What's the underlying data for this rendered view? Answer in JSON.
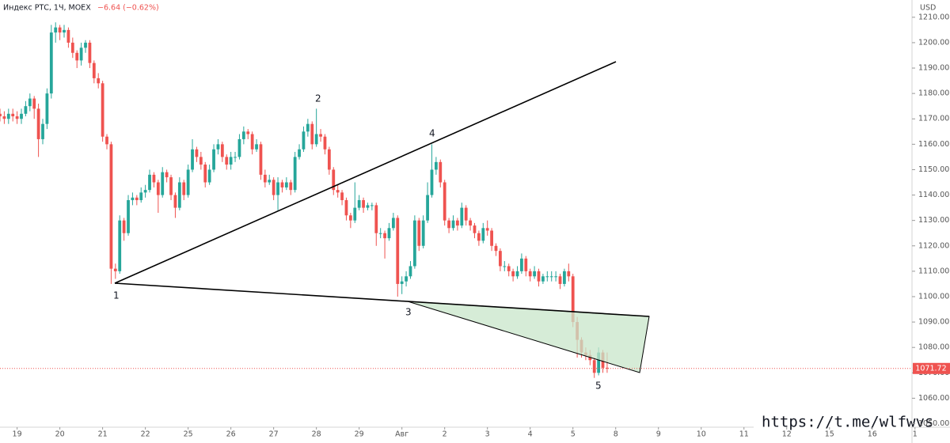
{
  "chart_data": {
    "type": "candlestick",
    "title": "Индекс РТС, 1Ч, MOEX",
    "change": "−6.64 (−0.62%)",
    "currency": "USD",
    "watermark": "https://t.me/wlfwvs",
    "annotations": [
      "1",
      "2",
      "3",
      "4",
      "5"
    ],
    "up_color": "#26a69a",
    "down_color": "#ef5350",
    "grid": false,
    "ylim": [
      1048.6,
      1216.8
    ],
    "yticks": [
      {
        "value": 1050,
        "label": "1050.00"
      },
      {
        "value": 1060,
        "label": "1060.00"
      },
      {
        "value": 1070,
        "label": "1070.00"
      },
      {
        "value": 1080,
        "label": "1080.00"
      },
      {
        "value": 1090,
        "label": "1090.00"
      },
      {
        "value": 1100,
        "label": "1100.00"
      },
      {
        "value": 1110,
        "label": "1110.00"
      },
      {
        "value": 1120,
        "label": "1120.00"
      },
      {
        "value": 1130,
        "label": "1130.00"
      },
      {
        "value": 1140,
        "label": "1140.00"
      },
      {
        "value": 1150,
        "label": "1150.00"
      },
      {
        "value": 1160,
        "label": "1160.00"
      },
      {
        "value": 1170,
        "label": "1170.00"
      },
      {
        "value": 1180,
        "label": "1180.00"
      },
      {
        "value": 1190,
        "label": "1190.00"
      },
      {
        "value": 1200,
        "label": "1200.00"
      },
      {
        "value": 1210,
        "label": "1210.00"
      }
    ],
    "xlim": [
      0,
      213.3
    ],
    "xticks": [
      {
        "value": 4,
        "label": "19"
      },
      {
        "value": 14,
        "label": "20"
      },
      {
        "value": 24,
        "label": "21"
      },
      {
        "value": 34,
        "label": "22"
      },
      {
        "value": 44,
        "label": "25"
      },
      {
        "value": 54,
        "label": "26"
      },
      {
        "value": 64,
        "label": "27"
      },
      {
        "value": 74,
        "label": "28"
      },
      {
        "value": 84,
        "label": "29"
      },
      {
        "value": 94,
        "label": "Авг"
      },
      {
        "value": 104,
        "label": "2"
      },
      {
        "value": 114,
        "label": "3"
      },
      {
        "value": 124,
        "label": "4"
      },
      {
        "value": 134,
        "label": "5"
      },
      {
        "value": 144,
        "label": "8"
      },
      {
        "value": 154,
        "label": "9"
      },
      {
        "value": 164,
        "label": "10"
      },
      {
        "value": 174,
        "label": "11"
      },
      {
        "value": 184,
        "label": "12"
      },
      {
        "value": 194,
        "label": "15"
      },
      {
        "value": 204,
        "label": "16"
      },
      {
        "value": 214,
        "label": "1"
      }
    ],
    "ohlc": [
      [
        1172,
        1174,
        1169,
        1171
      ],
      [
        1171,
        1173,
        1168,
        1170
      ],
      [
        1170,
        1174,
        1168,
        1172
      ],
      [
        1172,
        1174,
        1169,
        1171
      ],
      [
        1171,
        1173,
        1168,
        1170
      ],
      [
        1170,
        1174,
        1168,
        1172
      ],
      [
        1172,
        1177,
        1171,
        1175
      ],
      [
        1175,
        1180,
        1173,
        1178
      ],
      [
        1178,
        1179,
        1170,
        1174
      ],
      [
        1174,
        1176,
        1155,
        1162
      ],
      [
        1162,
        1170,
        1160,
        1168
      ],
      [
        1168,
        1182,
        1166,
        1180
      ],
      [
        1180,
        1207,
        1178,
        1204
      ],
      [
        1204,
        1208,
        1200,
        1206
      ],
      [
        1206,
        1207,
        1201,
        1204
      ],
      [
        1204,
        1207,
        1202,
        1205
      ],
      [
        1205,
        1206,
        1198,
        1200
      ],
      [
        1200,
        1202,
        1194,
        1196
      ],
      [
        1196,
        1197,
        1190,
        1193
      ],
      [
        1193,
        1200,
        1191,
        1198
      ],
      [
        1198,
        1201,
        1196,
        1200
      ],
      [
        1200,
        1201,
        1190,
        1192
      ],
      [
        1192,
        1193,
        1184,
        1186
      ],
      [
        1186,
        1188,
        1182,
        1184
      ],
      [
        1184,
        1185,
        1161,
        1163
      ],
      [
        1163,
        1164,
        1158,
        1160
      ],
      [
        1160,
        1161,
        1105,
        1111
      ],
      [
        1111,
        1113,
        1107,
        1110
      ],
      [
        1110,
        1132,
        1109,
        1130
      ],
      [
        1130,
        1131,
        1122,
        1125
      ],
      [
        1125,
        1140,
        1124,
        1138
      ],
      [
        1138,
        1141,
        1136,
        1139
      ],
      [
        1139,
        1140,
        1136,
        1138
      ],
      [
        1138,
        1143,
        1137,
        1141
      ],
      [
        1141,
        1144,
        1139,
        1142
      ],
      [
        1142,
        1150,
        1141,
        1148
      ],
      [
        1148,
        1149,
        1143,
        1145
      ],
      [
        1145,
        1146,
        1133,
        1140
      ],
      [
        1140,
        1151,
        1139,
        1149
      ],
      [
        1149,
        1150,
        1145,
        1147
      ],
      [
        1147,
        1148,
        1138,
        1140
      ],
      [
        1140,
        1141,
        1131,
        1135
      ],
      [
        1135,
        1147,
        1134,
        1145
      ],
      [
        1145,
        1146,
        1138,
        1140
      ],
      [
        1140,
        1152,
        1139,
        1150
      ],
      [
        1150,
        1162,
        1149,
        1158
      ],
      [
        1158,
        1159,
        1153,
        1155
      ],
      [
        1155,
        1157,
        1150,
        1152
      ],
      [
        1152,
        1153,
        1143,
        1145
      ],
      [
        1145,
        1152,
        1144,
        1150
      ],
      [
        1150,
        1160,
        1149,
        1158
      ],
      [
        1158,
        1162,
        1156,
        1160
      ],
      [
        1160,
        1161,
        1153,
        1155
      ],
      [
        1155,
        1156,
        1150,
        1152
      ],
      [
        1152,
        1157,
        1150,
        1155
      ],
      [
        1155,
        1157,
        1153,
        1155
      ],
      [
        1155,
        1164,
        1154,
        1162
      ],
      [
        1162,
        1167,
        1160,
        1165
      ],
      [
        1165,
        1166,
        1162,
        1164
      ],
      [
        1164,
        1165,
        1156,
        1158
      ],
      [
        1158,
        1162,
        1157,
        1160
      ],
      [
        1160,
        1161,
        1146,
        1148
      ],
      [
        1148,
        1150,
        1143,
        1145
      ],
      [
        1145,
        1148,
        1144,
        1146
      ],
      [
        1146,
        1147,
        1138,
        1140
      ],
      [
        1140,
        1147,
        1134,
        1145
      ],
      [
        1145,
        1146,
        1141,
        1143
      ],
      [
        1143,
        1147,
        1142,
        1145
      ],
      [
        1145,
        1146,
        1140,
        1142
      ],
      [
        1142,
        1157,
        1141,
        1155
      ],
      [
        1155,
        1160,
        1154,
        1158
      ],
      [
        1158,
        1167,
        1157,
        1165
      ],
      [
        1165,
        1170,
        1163,
        1168
      ],
      [
        1168,
        1169,
        1158,
        1160
      ],
      [
        1160,
        1174,
        1159,
        1164
      ],
      [
        1164,
        1166,
        1161,
        1163
      ],
      [
        1163,
        1164,
        1156,
        1158
      ],
      [
        1158,
        1159,
        1148,
        1150
      ],
      [
        1150,
        1151,
        1140,
        1142
      ],
      [
        1142,
        1144,
        1139,
        1141
      ],
      [
        1141,
        1142,
        1136,
        1138
      ],
      [
        1138,
        1139,
        1130,
        1132
      ],
      [
        1132,
        1133,
        1127,
        1130
      ],
      [
        1130,
        1145,
        1129,
        1135
      ],
      [
        1135,
        1140,
        1134,
        1138
      ],
      [
        1138,
        1139,
        1133,
        1135
      ],
      [
        1135,
        1137,
        1134,
        1136
      ],
      [
        1136,
        1137,
        1134,
        1136
      ],
      [
        1136,
        1137,
        1120,
        1125
      ],
      [
        1125,
        1127,
        1123,
        1125
      ],
      [
        1125,
        1126,
        1115,
        1123
      ],
      [
        1123,
        1129,
        1122,
        1127
      ],
      [
        1127,
        1133,
        1126,
        1131
      ],
      [
        1131,
        1132,
        1100,
        1105
      ],
      [
        1105,
        1108,
        1101,
        1106
      ],
      [
        1106,
        1110,
        1104,
        1108
      ],
      [
        1108,
        1114,
        1107,
        1112
      ],
      [
        1112,
        1132,
        1111,
        1130
      ],
      [
        1130,
        1131,
        1118,
        1120
      ],
      [
        1120,
        1132,
        1119,
        1130
      ],
      [
        1130,
        1145,
        1129,
        1140
      ],
      [
        1140,
        1160,
        1139,
        1150
      ],
      [
        1150,
        1155,
        1148,
        1153
      ],
      [
        1153,
        1154,
        1143,
        1145
      ],
      [
        1145,
        1146,
        1128,
        1130
      ],
      [
        1130,
        1131,
        1125,
        1127
      ],
      [
        1127,
        1132,
        1126,
        1130
      ],
      [
        1130,
        1131,
        1126,
        1128
      ],
      [
        1128,
        1137,
        1127,
        1135
      ],
      [
        1135,
        1136,
        1128,
        1130
      ],
      [
        1130,
        1131,
        1126,
        1128
      ],
      [
        1128,
        1129,
        1123,
        1125
      ],
      [
        1125,
        1126,
        1120,
        1122
      ],
      [
        1122,
        1129,
        1121,
        1127
      ],
      [
        1127,
        1130,
        1124,
        1126
      ],
      [
        1126,
        1127,
        1118,
        1120
      ],
      [
        1120,
        1121,
        1116,
        1118
      ],
      [
        1118,
        1119,
        1110,
        1112
      ],
      [
        1112,
        1114,
        1110,
        1112
      ],
      [
        1112,
        1113,
        1108,
        1110
      ],
      [
        1110,
        1111,
        1106,
        1108
      ],
      [
        1108,
        1112,
        1107,
        1110
      ],
      [
        1110,
        1117,
        1109,
        1115
      ],
      [
        1115,
        1116,
        1108,
        1110
      ],
      [
        1110,
        1111,
        1106,
        1108
      ],
      [
        1108,
        1112,
        1107,
        1110
      ],
      [
        1110,
        1111,
        1104,
        1106
      ],
      [
        1106,
        1109,
        1105,
        1108
      ],
      [
        1108,
        1110,
        1106,
        1108
      ],
      [
        1108,
        1110,
        1106,
        1108
      ],
      [
        1108,
        1110,
        1106,
        1108
      ],
      [
        1108,
        1109,
        1103,
        1105
      ],
      [
        1105,
        1111,
        1104,
        1110
      ],
      [
        1110,
        1113,
        1106,
        1108
      ],
      [
        1108,
        1109,
        1088,
        1090
      ],
      [
        1090,
        1092,
        1076,
        1083
      ],
      [
        1083,
        1084,
        1076,
        1078
      ],
      [
        1078,
        1080,
        1075,
        1077
      ],
      [
        1077,
        1079,
        1073,
        1075
      ],
      [
        1075,
        1076,
        1068,
        1070
      ],
      [
        1070,
        1080,
        1069,
        1078
      ],
      [
        1078,
        1079,
        1070,
        1072
      ],
      [
        1072,
        1078,
        1070,
        1071.72
      ]
    ]
  }
}
